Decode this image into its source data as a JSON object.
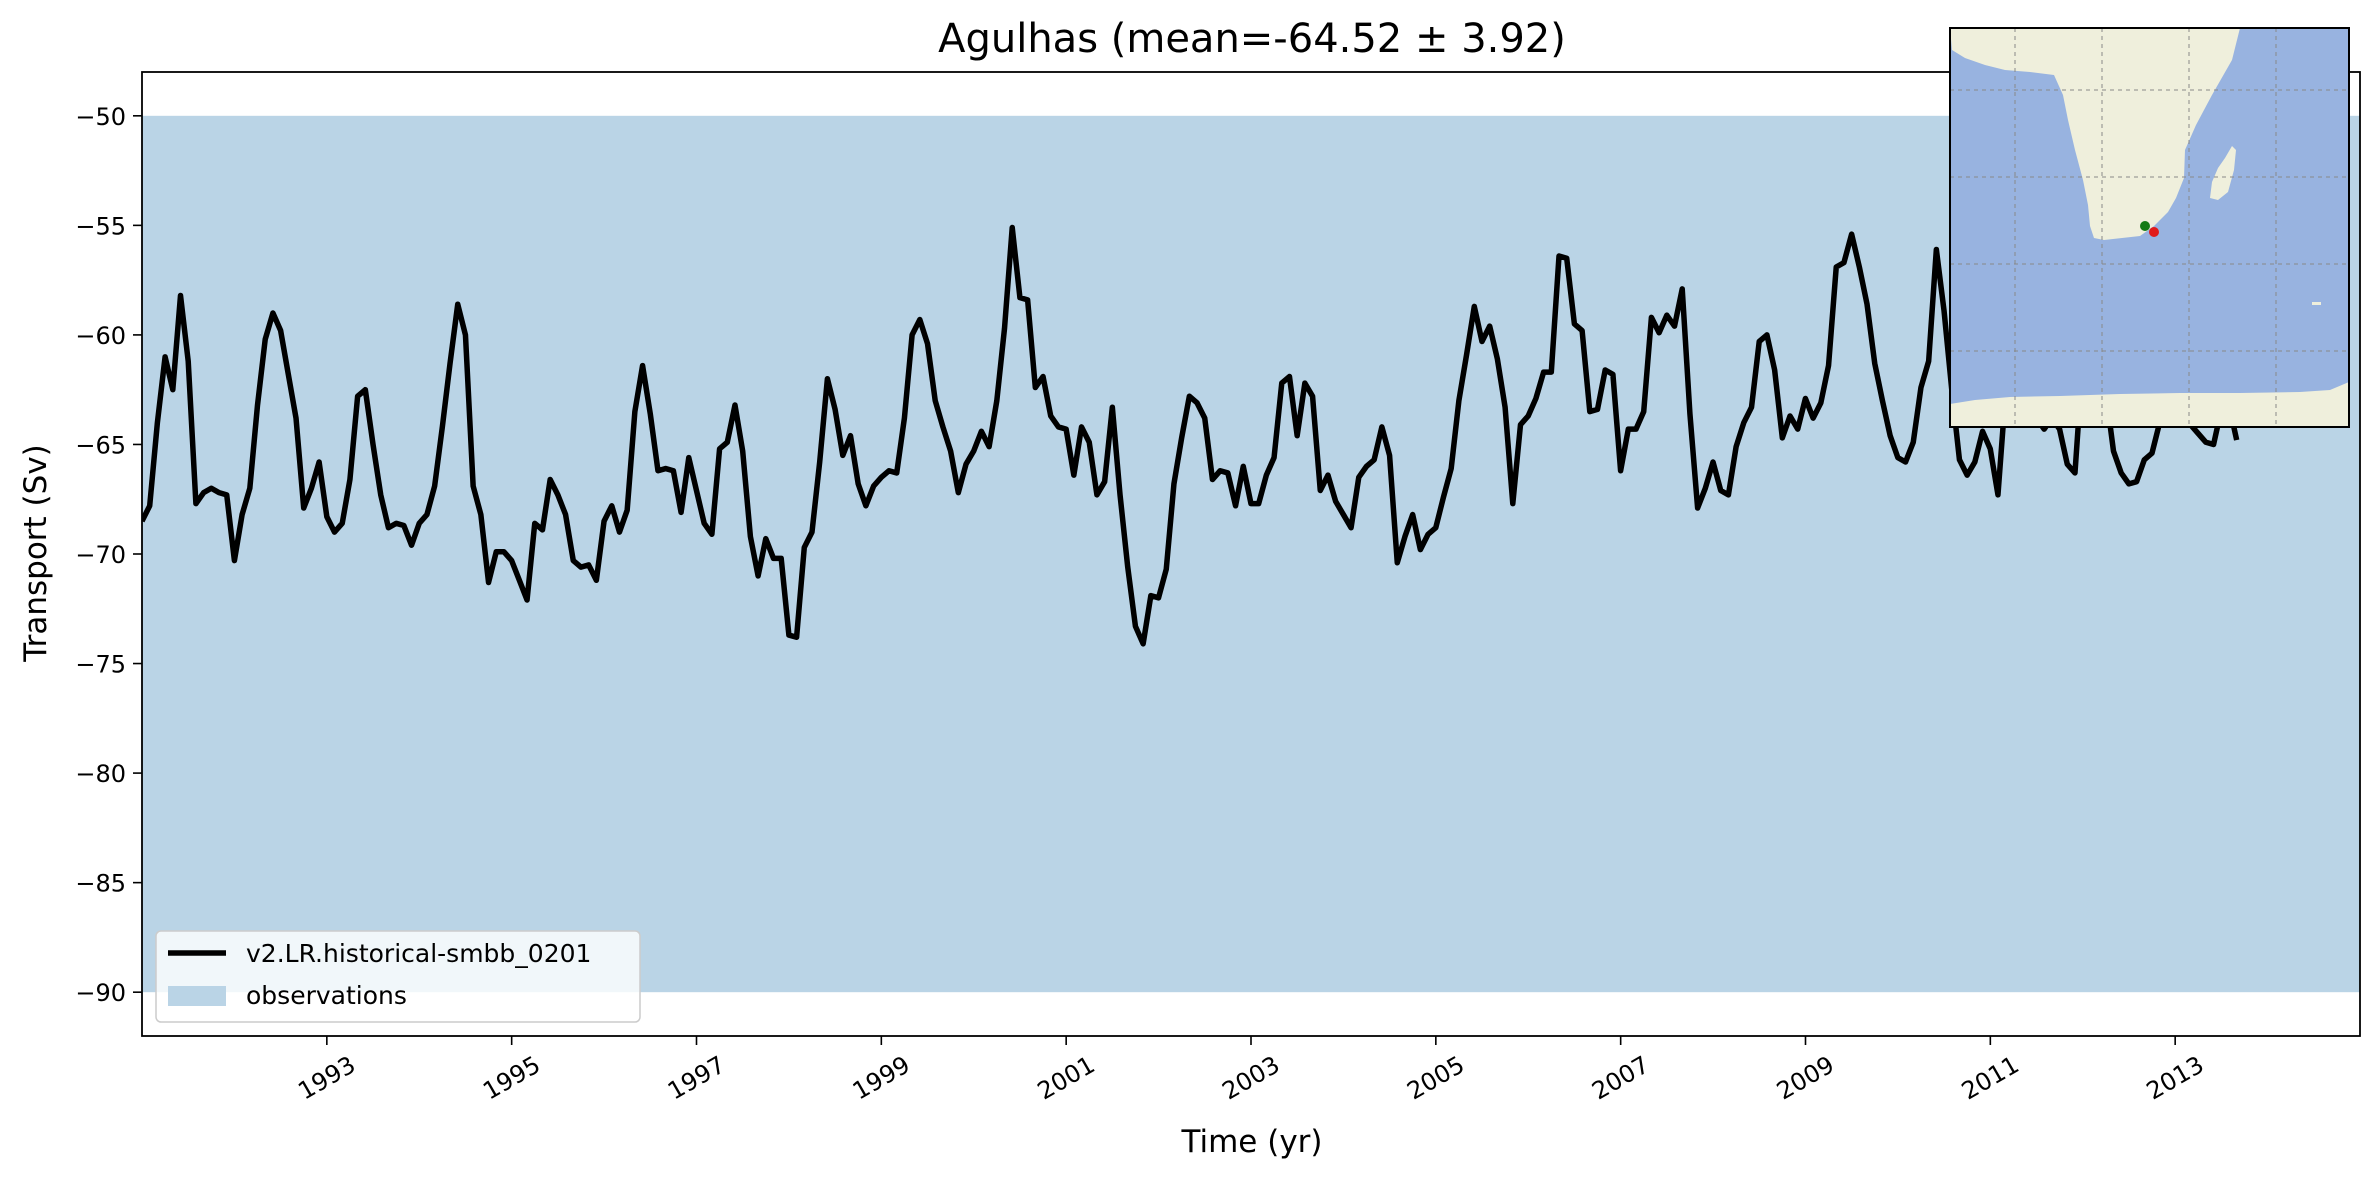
{
  "chart_data": {
    "type": "line",
    "title": "Agulhas (mean=-64.52 ± 3.92)",
    "xlabel": "Time (yr)",
    "ylabel": "Transport (Sv)",
    "xlim": [
      1991.0,
      2015.0
    ],
    "ylim": [
      -92,
      -48
    ],
    "x_ticks": [
      1993,
      1995,
      1997,
      1999,
      2001,
      2003,
      2005,
      2007,
      2009,
      2011,
      2013
    ],
    "y_ticks": [
      -50,
      -55,
      -60,
      -65,
      -70,
      -75,
      -80,
      -85,
      -90
    ],
    "y_tick_labels": [
      "−50",
      "−55",
      "−60",
      "−65",
      "−70",
      "−75",
      "−80",
      "−85",
      "−90"
    ],
    "grid": false,
    "legend_position": "lower-left",
    "series": [
      {
        "name": "v2.LR.historical-smbb_0201",
        "kind": "line",
        "color": "#000000",
        "x_start": 1991.0,
        "x_step": 0.08333,
        "values": [
          -68.5,
          -67.8,
          -64.0,
          -61.0,
          -62.5,
          -58.2,
          -61.2,
          -67.7,
          -67.2,
          -67.0,
          -67.2,
          -67.3,
          -70.3,
          -68.2,
          -67.0,
          -63.2,
          -60.2,
          -59.0,
          -59.8,
          -61.8,
          -63.8,
          -67.9,
          -67.0,
          -65.8,
          -68.3,
          -69.0,
          -68.6,
          -66.6,
          -62.8,
          -62.5,
          -65.0,
          -67.3,
          -68.8,
          -68.6,
          -68.7,
          -69.6,
          -68.6,
          -68.2,
          -66.9,
          -64.2,
          -61.3,
          -58.6,
          -60.0,
          -66.9,
          -68.2,
          -71.3,
          -69.9,
          -69.9,
          -70.3,
          -71.2,
          -72.1,
          -68.6,
          -68.9,
          -66.6,
          -67.3,
          -68.2,
          -70.3,
          -70.6,
          -70.5,
          -71.2,
          -68.5,
          -67.8,
          -69.0,
          -68.0,
          -63.5,
          -61.4,
          -63.6,
          -66.2,
          -66.1,
          -66.2,
          -68.1,
          -65.6,
          -67.1,
          -68.6,
          -69.1,
          -65.2,
          -64.9,
          -63.2,
          -65.3,
          -69.2,
          -71.0,
          -69.3,
          -70.2,
          -70.2,
          -73.7,
          -73.8,
          -69.7,
          -69.0,
          -65.8,
          -62.0,
          -63.4,
          -65.5,
          -64.6,
          -66.8,
          -67.8,
          -66.9,
          -66.5,
          -66.2,
          -66.3,
          -63.8,
          -60.0,
          -59.3,
          -60.4,
          -63.0,
          -64.2,
          -65.3,
          -67.2,
          -65.9,
          -65.3,
          -64.4,
          -65.1,
          -63.0,
          -59.7,
          -55.1,
          -58.3,
          -58.4,
          -62.4,
          -61.9,
          -63.7,
          -64.2,
          -64.3,
          -66.4,
          -64.2,
          -64.9,
          -67.3,
          -66.7,
          -63.3,
          -67.3,
          -70.6,
          -73.3,
          -74.1,
          -71.9,
          -72.0,
          -70.7,
          -66.8,
          -64.7,
          -62.8,
          -63.1,
          -63.8,
          -66.6,
          -66.2,
          -66.3,
          -67.8,
          -66.0,
          -67.7,
          -67.7,
          -66.4,
          -65.6,
          -62.2,
          -61.9,
          -64.6,
          -62.2,
          -62.8,
          -67.1,
          -66.4,
          -67.6,
          -68.2,
          -68.8,
          -66.5,
          -66.0,
          -65.7,
          -64.2,
          -65.5,
          -70.4,
          -69.2,
          -68.2,
          -69.8,
          -69.1,
          -68.8,
          -67.4,
          -66.1,
          -63.0,
          -60.9,
          -58.7,
          -60.3,
          -59.6,
          -61.1,
          -63.3,
          -67.7,
          -64.1,
          -63.7,
          -62.9,
          -61.7,
          -61.7,
          -56.4,
          -56.5,
          -59.5,
          -59.8,
          -63.5,
          -63.4,
          -61.6,
          -61.8,
          -66.2,
          -64.3,
          -64.3,
          -63.5,
          -59.2,
          -59.9,
          -59.1,
          -59.6,
          -57.9,
          -63.6,
          -67.9,
          -67.0,
          -65.8,
          -67.1,
          -67.3,
          -65.1,
          -64.0,
          -63.3,
          -60.3,
          -60.0,
          -61.6,
          -64.7,
          -63.7,
          -64.3,
          -62.9,
          -63.8,
          -63.1,
          -61.4,
          -56.9,
          -56.7,
          -55.4,
          -56.9,
          -58.6,
          -61.3,
          -63.0,
          -64.6,
          -65.6,
          -65.8,
          -64.9,
          -62.4,
          -61.2,
          -56.1,
          -58.9,
          -62.5,
          -65.7,
          -66.4,
          -65.8,
          -64.4,
          -65.2,
          -67.3,
          -62.6,
          -59.0,
          -61.2,
          -63.4,
          -63.8,
          -64.3,
          -63.8,
          -64.3,
          -65.9,
          -66.3,
          -61.2,
          -58.1,
          -60.6,
          -62.6,
          -65.3,
          -66.3,
          -66.8,
          -66.7,
          -65.7,
          -65.4,
          -64.0,
          -63.4,
          -63.6,
          -63.8,
          -64.1,
          -64.5,
          -64.9,
          -65.0,
          -63.4,
          -63.2,
          -64.8
        ]
      },
      {
        "name": "observations",
        "kind": "band",
        "color": "#bad4e6",
        "y_range": [
          -90,
          -50
        ]
      }
    ]
  },
  "inset_map": {
    "description_colors": {
      "ocean": "#98b3e0",
      "land": "#efefdc"
    },
    "markers": [
      {
        "color": "#157a15"
      },
      {
        "color": "#e01a1a"
      }
    ]
  }
}
